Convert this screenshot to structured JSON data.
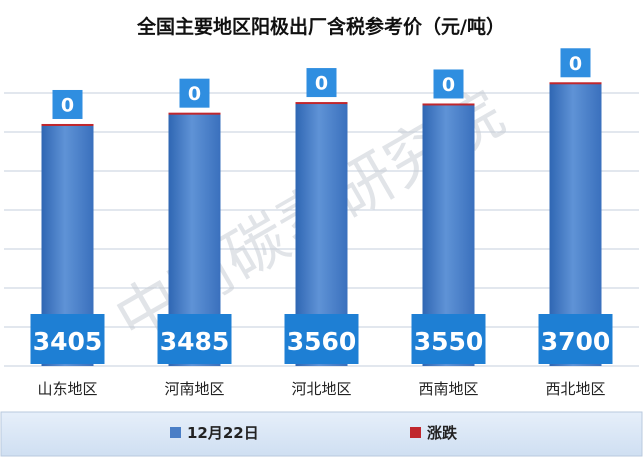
{
  "chart_data": {
    "type": "bar",
    "title": "全国主要地区阳极出厂含税参考价（元/吨）",
    "categories": [
      "山东地区",
      "河南地区",
      "河北地区",
      "西南地区",
      "西北地区"
    ],
    "series": [
      {
        "name": "12月22日",
        "values": [
          3405,
          3485,
          3560,
          3550,
          3700
        ],
        "color": "#4a7ec6"
      },
      {
        "name": "涨跌",
        "values": [
          0,
          0,
          0,
          0,
          0
        ],
        "color": "#c0272d"
      }
    ],
    "ylim": [
      1700,
      3900
    ],
    "grid": true,
    "legend_position": "bottom",
    "watermark": "中商碳素研究院"
  },
  "colors": {
    "bar": "#4a7ec6",
    "change_marker": "#c0272d",
    "value_box": "#1e7fd4",
    "label_box": "#2f8ee0",
    "grid": "#c5cfdc",
    "legend_background": "#dce8f6",
    "watermark": "#c9ced6"
  }
}
